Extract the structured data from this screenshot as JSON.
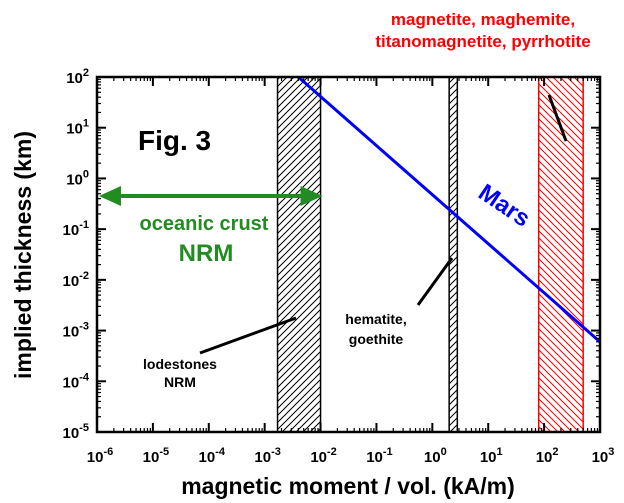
{
  "chart_data": {
    "type": "line",
    "figure_label": "Fig. 3",
    "xlabel": "magnetic moment / vol. (kA/m)",
    "ylabel": "implied thickness (km)",
    "x_scale": "log",
    "y_scale": "log",
    "xlim": [
      1e-06,
      1000
    ],
    "ylim": [
      1e-05,
      100
    ],
    "grid": false,
    "x_ticks": [
      {
        "v": 1e-06,
        "base": "10",
        "exp": "-6"
      },
      {
        "v": 1e-05,
        "base": "10",
        "exp": "-5"
      },
      {
        "v": 0.0001,
        "base": "10",
        "exp": "-4"
      },
      {
        "v": 0.001,
        "base": "10",
        "exp": "-3"
      },
      {
        "v": 0.01,
        "base": "10",
        "exp": "-2"
      },
      {
        "v": 0.1,
        "base": "10",
        "exp": "-1"
      },
      {
        "v": 1,
        "base": "10",
        "exp": "0"
      },
      {
        "v": 10,
        "base": "10",
        "exp": "1"
      },
      {
        "v": 100,
        "base": "10",
        "exp": "2"
      },
      {
        "v": 1000,
        "base": "10",
        "exp": "3"
      }
    ],
    "y_ticks": [
      {
        "v": 100,
        "base": "10",
        "exp": "2"
      },
      {
        "v": 10,
        "base": "10",
        "exp": "1"
      },
      {
        "v": 1,
        "base": "10",
        "exp": "0"
      },
      {
        "v": 0.1,
        "base": "10",
        "exp": "-1"
      },
      {
        "v": 0.01,
        "base": "10",
        "exp": "-2"
      },
      {
        "v": 0.001,
        "base": "10",
        "exp": "-3"
      },
      {
        "v": 0.0001,
        "base": "10",
        "exp": "-4"
      },
      {
        "v": 1e-05,
        "base": "10",
        "exp": "-5"
      }
    ],
    "series": [
      {
        "name": "Mars",
        "color": "#0000ff",
        "x": [
          0.004,
          1000
        ],
        "y": [
          100,
          0.0006
        ]
      }
    ],
    "bands": [
      {
        "name": "lodestones-band",
        "x_range": [
          0.0017,
          0.01
        ],
        "y_range": [
          1e-05,
          100
        ],
        "color": "#000000",
        "hatch": "forward"
      },
      {
        "name": "hematite-band",
        "x_range": [
          2,
          2.8
        ],
        "y_range": [
          1e-05,
          100
        ],
        "color": "#000000",
        "hatch": "forward"
      },
      {
        "name": "magnetite-band",
        "x_range": [
          80,
          500
        ],
        "y_range": [
          1e-05,
          100
        ],
        "color": "#ff0000",
        "hatch": "back"
      }
    ],
    "range_arrow": {
      "name": "oceanic-crust-arrow",
      "x_range": [
        1e-06,
        0.01
      ],
      "y": 0.45,
      "color": "#228b22"
    },
    "annotations": [
      {
        "name": "oceanic-crust-label",
        "lines": [
          "oceanic crust",
          "NRM"
        ],
        "color": "#228b22"
      },
      {
        "name": "lodestones-label",
        "lines": [
          "lodestones",
          "NRM"
        ],
        "color": "#000000"
      },
      {
        "name": "hematite-label",
        "lines": [
          "hematite,",
          "goethite"
        ],
        "color": "#000000"
      },
      {
        "name": "magnetite-label",
        "lines": [
          "magnetite, maghemite,",
          "titanomagnetite, pyrrhotite"
        ],
        "color": "#ff0000"
      },
      {
        "name": "mars-label",
        "lines": [
          "Mars"
        ],
        "color": "#0000ff"
      }
    ]
  }
}
